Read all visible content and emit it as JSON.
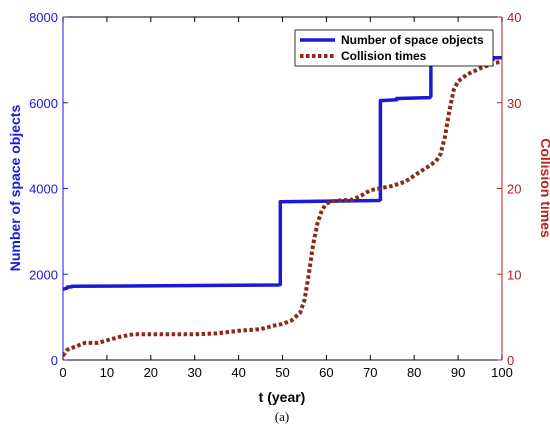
{
  "chart_data": {
    "type": "line",
    "title": "",
    "xlabel": "t (year)",
    "ylabel_left": "Number of space objects",
    "ylabel_right": "Collision times",
    "xlim": [
      0,
      100
    ],
    "ylim_left": [
      0,
      8000
    ],
    "ylim_right": [
      0,
      40
    ],
    "xticks": [
      "0",
      "10",
      "20",
      "30",
      "40",
      "50",
      "60",
      "70",
      "80",
      "90",
      "100"
    ],
    "yticks_left": [
      "0",
      "2000",
      "4000",
      "6000",
      "8000"
    ],
    "yticks_right": [
      "0",
      "10",
      "20",
      "30",
      "40"
    ],
    "grid": false,
    "legend_position": "top-right",
    "caption": "(a)",
    "colors": {
      "left_axis": "#1a1adb",
      "right_axis": "#b22222",
      "objects_line": "#1a1ad8",
      "collision_line": "#8b2a1a"
    },
    "series": [
      {
        "name": "Number of space objects",
        "axis": "left",
        "style": "solid",
        "x": [
          0,
          1,
          1,
          2,
          2,
          49,
          49.5,
          49.5,
          72,
          72.3,
          72.3,
          76,
          76,
          83.5,
          83.8,
          83.8,
          98,
          98,
          100
        ],
        "y": [
          1650,
          1680,
          1700,
          1710,
          1720,
          1750,
          1760,
          3690,
          3720,
          3740,
          6050,
          6070,
          6100,
          6120,
          6150,
          7000,
          7010,
          7050,
          7050
        ]
      },
      {
        "name": "Collision times",
        "axis": "right",
        "style": "dotted",
        "x": [
          0,
          1,
          3,
          5,
          8,
          10,
          13,
          16,
          20,
          25,
          30,
          35,
          40,
          45,
          48,
          50,
          52,
          54,
          55,
          56,
          57,
          58,
          59,
          60,
          61,
          63,
          66,
          68,
          70,
          72,
          75,
          78,
          80,
          83,
          85,
          86,
          87,
          88,
          89,
          90,
          92,
          95,
          98,
          100
        ],
        "y": [
          0.5,
          1.2,
          1.6,
          2.0,
          2.0,
          2.3,
          2.7,
          3.0,
          3.0,
          3.0,
          3.0,
          3.1,
          3.4,
          3.6,
          4.0,
          4.2,
          4.6,
          5.5,
          7.0,
          10.0,
          13.5,
          16.0,
          17.5,
          18.2,
          18.5,
          18.6,
          18.7,
          19.2,
          19.8,
          20.0,
          20.3,
          20.8,
          21.5,
          22.5,
          23.2,
          24.0,
          26.0,
          29.0,
          31.5,
          32.5,
          33.3,
          34.0,
          34.6,
          34.8
        ]
      }
    ]
  }
}
